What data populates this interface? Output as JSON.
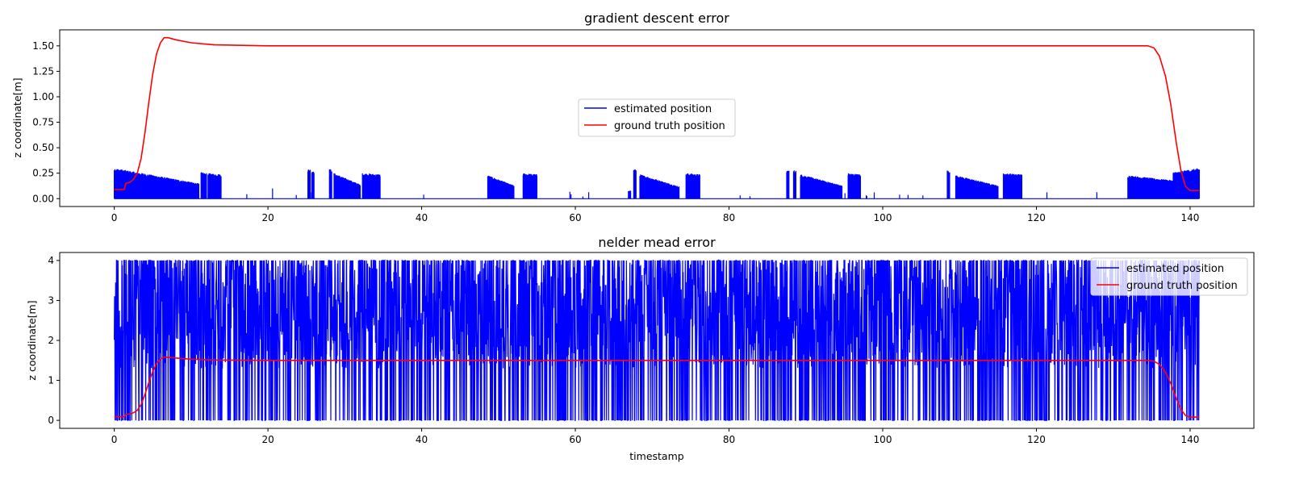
{
  "chart_data": [
    {
      "type": "line",
      "title": "gradient descent error",
      "xlabel": "",
      "ylabel": "z coordinate[m]",
      "xlim": [
        -7.1,
        148.3
      ],
      "ylim": [
        -0.077,
        1.657
      ],
      "xticks": [
        0,
        20,
        40,
        60,
        80,
        100,
        120,
        140
      ],
      "yticks": [
        0.0,
        0.25,
        0.5,
        0.75,
        1.0,
        1.25,
        1.5
      ],
      "ytick_labels": [
        "0.00",
        "0.25",
        "0.50",
        "0.75",
        "1.00",
        "1.25",
        "1.50"
      ],
      "legend_position": "center",
      "grid": false,
      "series": [
        {
          "name": "estimated position",
          "color": "#0000ff",
          "style": "dense-noise",
          "points": [
            [
              0,
              0.09
            ],
            [
              141.2,
              0.0
            ]
          ],
          "bursts": [
            [
              0,
              3,
              0.3,
              0.26
            ],
            [
              3,
              11,
              0.26,
              0.15
            ],
            [
              11.3,
              11.6,
              0.26,
              0.26
            ],
            [
              11.7,
              12.0,
              0.25,
              0.25
            ],
            [
              12.2,
              13.9,
              0.25,
              0.24
            ],
            [
              25.2,
              25.5,
              0.29,
              0.29
            ],
            [
              25.7,
              26.0,
              0.28,
              0.28
            ],
            [
              28.0,
              28.3,
              0.29,
              0.29
            ],
            [
              28.6,
              32.0,
              0.25,
              0.14
            ],
            [
              32.3,
              34.6,
              0.25,
              0.24
            ],
            [
              48.6,
              52.0,
              0.23,
              0.13
            ],
            [
              53.2,
              55.0,
              0.25,
              0.24
            ],
            [
              66.9,
              67.2,
              0.08,
              0.08
            ],
            [
              67.6,
              67.9,
              0.29,
              0.29
            ],
            [
              68.4,
              73.5,
              0.24,
              0.12
            ],
            [
              74.4,
              76.2,
              0.25,
              0.24
            ],
            [
              87.5,
              87.8,
              0.28,
              0.28
            ],
            [
              88.4,
              88.7,
              0.28,
              0.28
            ],
            [
              89.3,
              94.7,
              0.24,
              0.13
            ],
            [
              95.5,
              97.1,
              0.25,
              0.24
            ],
            [
              108.4,
              108.7,
              0.28,
              0.28
            ],
            [
              109.5,
              115.0,
              0.23,
              0.13
            ],
            [
              115.7,
              118.1,
              0.25,
              0.24
            ],
            [
              131.9,
              137.8,
              0.23,
              0.18
            ],
            [
              137.8,
              141.2,
              0.26,
              0.3
            ]
          ]
        },
        {
          "name": "ground truth position",
          "color": "#ff0000",
          "style": "line",
          "points": [
            [
              0,
              0.09
            ],
            [
              1.3,
              0.09
            ],
            [
              1.5,
              0.15
            ],
            [
              2.0,
              0.16
            ],
            [
              2.5,
              0.19
            ],
            [
              3.0,
              0.25
            ],
            [
              3.5,
              0.4
            ],
            [
              4.0,
              0.65
            ],
            [
              4.5,
              0.95
            ],
            [
              5.0,
              1.22
            ],
            [
              5.5,
              1.42
            ],
            [
              6.0,
              1.53
            ],
            [
              6.5,
              1.58
            ],
            [
              7.0,
              1.58
            ],
            [
              8.0,
              1.56
            ],
            [
              10.0,
              1.53
            ],
            [
              13.0,
              1.51
            ],
            [
              20.0,
              1.5
            ],
            [
              60.0,
              1.5
            ],
            [
              100.0,
              1.5
            ],
            [
              134.5,
              1.5
            ],
            [
              135.3,
              1.48
            ],
            [
              136.0,
              1.4
            ],
            [
              136.8,
              1.2
            ],
            [
              137.5,
              0.92
            ],
            [
              138.2,
              0.55
            ],
            [
              138.8,
              0.28
            ],
            [
              139.4,
              0.12
            ],
            [
              140.0,
              0.08
            ],
            [
              141.2,
              0.08
            ]
          ]
        }
      ]
    },
    {
      "type": "line",
      "title": "nelder mead error",
      "xlabel": "timestamp",
      "ylabel": "z coordinate[m]",
      "xlim": [
        -7.1,
        148.3
      ],
      "ylim": [
        -0.2,
        4.2
      ],
      "xticks": [
        0,
        20,
        40,
        60,
        80,
        100,
        120,
        140
      ],
      "yticks": [
        0,
        1,
        2,
        3,
        4
      ],
      "ytick_labels": [
        "0",
        "1",
        "2",
        "3",
        "4"
      ],
      "legend_position": "upper right",
      "grid": false,
      "series": [
        {
          "name": "estimated position",
          "color": "#0000ff",
          "style": "dense-noise",
          "range": [
            0,
            141.2
          ],
          "lower": 0.0,
          "upper": 4.0
        },
        {
          "name": "ground truth position",
          "color": "#ff0000",
          "style": "line",
          "points": [
            [
              0,
              0.09
            ],
            [
              1.3,
              0.09
            ],
            [
              1.5,
              0.15
            ],
            [
              2.0,
              0.16
            ],
            [
              2.5,
              0.19
            ],
            [
              3.0,
              0.25
            ],
            [
              3.5,
              0.4
            ],
            [
              4.0,
              0.65
            ],
            [
              4.5,
              0.95
            ],
            [
              5.0,
              1.22
            ],
            [
              5.5,
              1.42
            ],
            [
              6.0,
              1.53
            ],
            [
              6.5,
              1.58
            ],
            [
              7.0,
              1.58
            ],
            [
              8.0,
              1.56
            ],
            [
              10.0,
              1.53
            ],
            [
              13.0,
              1.51
            ],
            [
              20.0,
              1.5
            ],
            [
              60.0,
              1.5
            ],
            [
              100.0,
              1.5
            ],
            [
              134.5,
              1.5
            ],
            [
              135.3,
              1.48
            ],
            [
              136.0,
              1.4
            ],
            [
              136.8,
              1.2
            ],
            [
              137.5,
              0.92
            ],
            [
              138.2,
              0.55
            ],
            [
              138.8,
              0.28
            ],
            [
              139.4,
              0.12
            ],
            [
              140.0,
              0.08
            ],
            [
              141.2,
              0.08
            ]
          ]
        }
      ]
    }
  ]
}
